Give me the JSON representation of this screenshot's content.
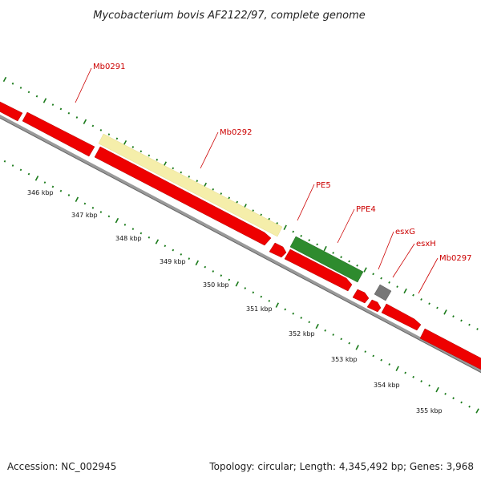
{
  "title": "Mycobacterium bovis AF2122/97, complete genome",
  "footer": {
    "accession": "Accession: NC_002945",
    "summary": "Topology: circular; Length: 4,345,492 bp; Genes: 3,968"
  },
  "gene_labels": [
    "Mb0291",
    "Mb0292",
    "PE5",
    "PPE4",
    "esxG",
    "esxH",
    "Mb0297"
  ],
  "kbp_labels": [
    "346 kbp",
    "347 kbp",
    "348 kbp",
    "349 kbp",
    "350 kbp",
    "351 kbp",
    "352 kbp",
    "353 kbp",
    "354 kbp",
    "355 kbp"
  ],
  "colors": {
    "cds": "#ee0000",
    "gene_highlight": "#f5eeaa",
    "pe_ppe": "#2e8b2e",
    "esx": "#777777",
    "backbone": "#8a8a8a",
    "ticks": "#1a7a1a",
    "label": "#cc0000"
  }
}
